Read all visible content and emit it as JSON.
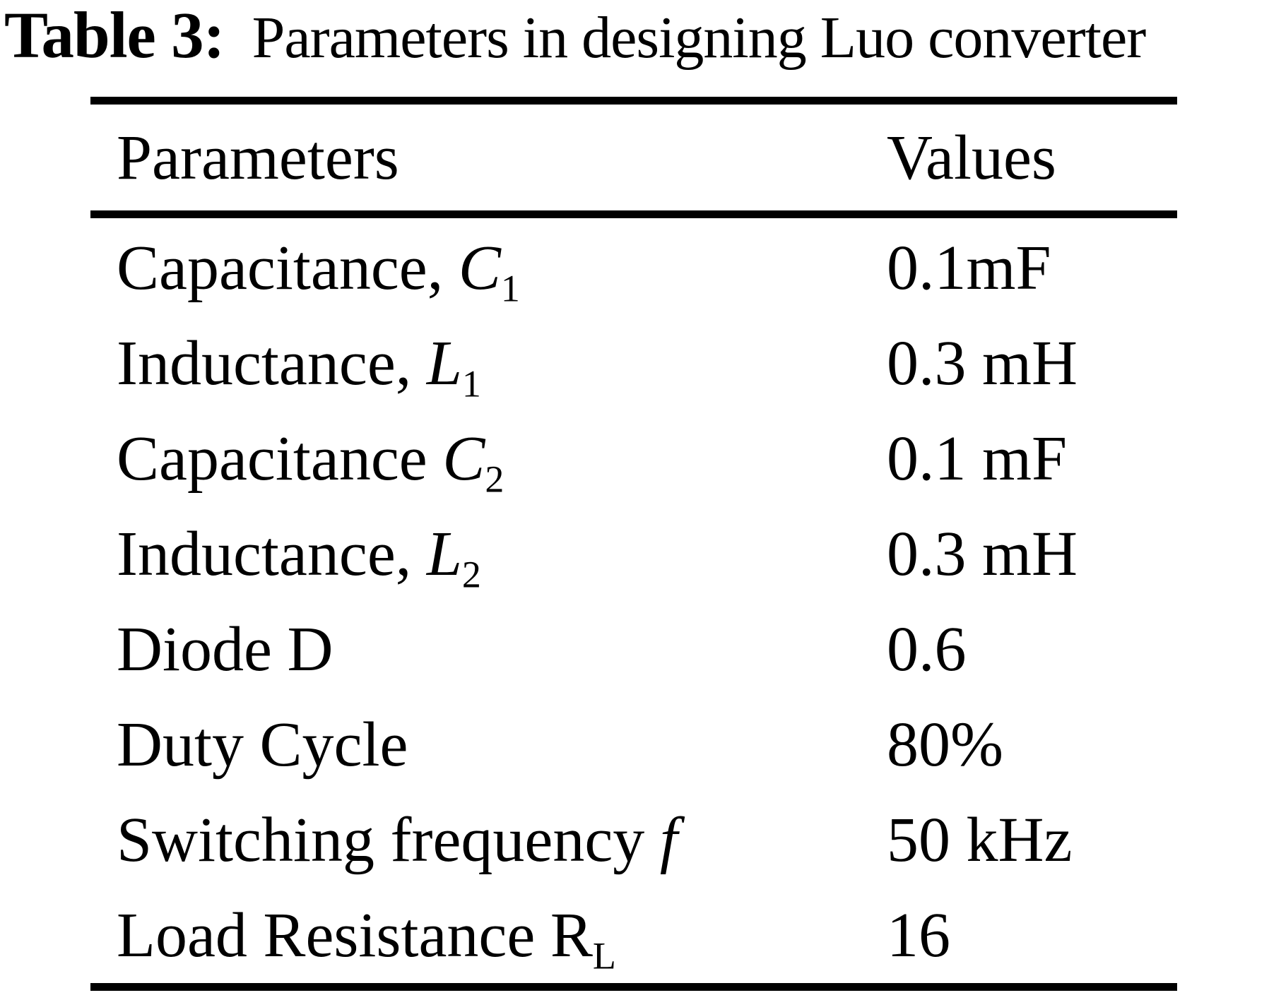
{
  "page": {
    "background_color": "#ffffff",
    "text_color": "#000000"
  },
  "title": {
    "label": "Table 3:",
    "text": "Parameters in designing Luo converter"
  },
  "table": {
    "headers": {
      "parameters": "Parameters",
      "values": "Values"
    },
    "rows": [
      {
        "label": "Capacitance,",
        "symbol": "C",
        "subscript": "1",
        "value": "0.1mF"
      },
      {
        "label": "Inductance,",
        "symbol": "L",
        "subscript": "1",
        "value": "0.3 mH"
      },
      {
        "label": "Capacitance",
        "symbol": "C",
        "subscript": "2",
        "value": "0.1 mF"
      },
      {
        "label": "Inductance,",
        "symbol": "L",
        "subscript": "2",
        "value": "0.3 mH"
      },
      {
        "label": "Diode",
        "symbol": "D",
        "subscript": "",
        "value": "0.6"
      },
      {
        "label": "Duty Cycle",
        "symbol": "",
        "subscript": "",
        "value": "80%"
      },
      {
        "label": "Switching frequency",
        "symbol": "f",
        "subscript": "",
        "value": "50 kHz"
      },
      {
        "label": "Load Resistance",
        "symbol": "R",
        "subscript": "L",
        "value": "16"
      }
    ]
  }
}
